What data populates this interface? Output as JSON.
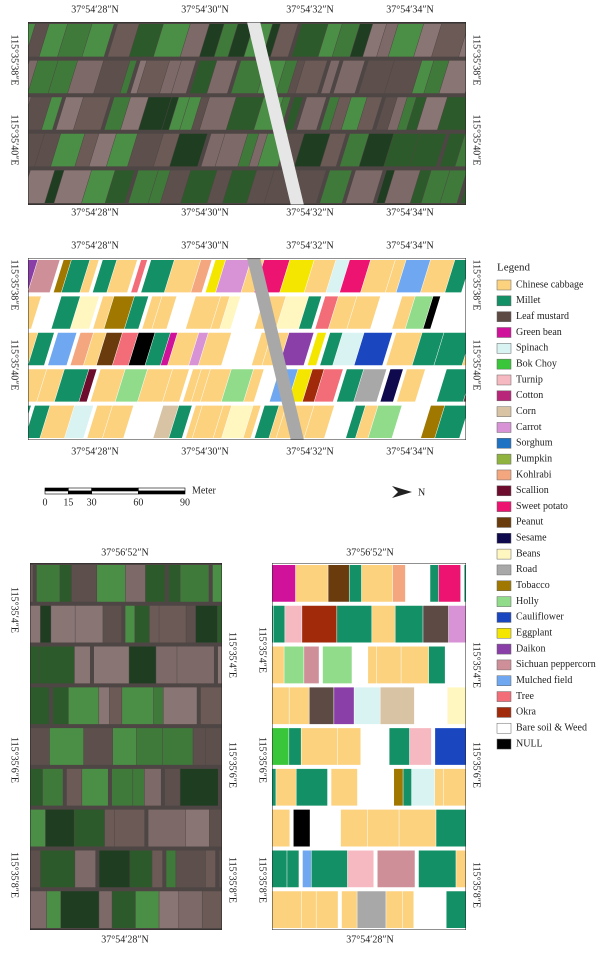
{
  "panels": [
    {
      "top_labels": [
        "37°54′28″N",
        "37°54′30″N",
        "37°54′32″N",
        "37°54′34″N"
      ],
      "bottom_labels": [
        "37°54′28″N",
        "37°54′30″N",
        "37°54′32″N",
        "37°54′34″N"
      ],
      "left_labels": [
        "115°35′38″E",
        "115°35′40″E"
      ],
      "right_labels": [
        "115°35′38″E",
        "115°35′40″E"
      ]
    },
    {
      "top_labels": [
        "37°54′28″N",
        "37°54′30″N",
        "37°54′32″N",
        "37°54′34″N"
      ],
      "bottom_labels": [
        "37°54′28″N",
        "37°54′30″N",
        "37°54′32″N",
        "37°54′34″N"
      ],
      "left_labels": [
        "115°35′38″E",
        "115°35′40″E"
      ],
      "right_labels": [
        "115°35′38″E",
        "115°35′40″E"
      ]
    },
    {
      "top_labels": [
        "37°56′52″N"
      ],
      "bottom_labels": [
        "37°54′28″N"
      ],
      "left_labels": [
        "115°35′4″E",
        "115°35′6″E",
        "115°35′8″E"
      ],
      "right_labels": [
        "115°35′4″E",
        "115°35′6″E",
        "115°35′8″E"
      ]
    },
    {
      "top_labels": [
        "37°56′52″N"
      ],
      "bottom_labels": [
        "37°54′28″N"
      ],
      "left_labels": [
        "115°35′4″E",
        "115°35′6″E",
        "115°35′8″E"
      ],
      "right_labels": [
        "115°35′4″E",
        "115°35′6″E",
        "115°35′8″E"
      ]
    }
  ],
  "scale_bar": {
    "ticks": [
      0,
      15,
      30,
      60,
      90
    ],
    "unit": "Meter"
  },
  "north_label": "N",
  "legend": {
    "title": "Legend",
    "items": [
      {
        "label": "Chinese cabbage",
        "color": "#fcd27f"
      },
      {
        "label": "Millet",
        "color": "#139065"
      },
      {
        "label": "Leaf mustard",
        "color": "#5e4a44"
      },
      {
        "label": "Green bean",
        "color": "#d0129b"
      },
      {
        "label": "Spinach",
        "color": "#d9f2f2"
      },
      {
        "label": "Bok Choy",
        "color": "#3ac63a"
      },
      {
        "label": "Turnip",
        "color": "#f7b9c1"
      },
      {
        "label": "Cotton",
        "color": "#b8267a"
      },
      {
        "label": "Corn",
        "color": "#d8c4a5"
      },
      {
        "label": "Carrot",
        "color": "#d892d6"
      },
      {
        "label": "Sorghum",
        "color": "#1e72c4"
      },
      {
        "label": "Pumpkin",
        "color": "#8fb33e"
      },
      {
        "label": "Kohlrabi",
        "color": "#f4a77f"
      },
      {
        "label": "Scallion",
        "color": "#6e0c2e"
      },
      {
        "label": "Sweet potato",
        "color": "#ec1470"
      },
      {
        "label": "Peanut",
        "color": "#6a3b0c"
      },
      {
        "label": "Sesame",
        "color": "#0f0a4e"
      },
      {
        "label": "Beans",
        "color": "#fff6c0"
      },
      {
        "label": "Road",
        "color": "#a8a8a8"
      },
      {
        "label": "Tobacco",
        "color": "#a07800"
      },
      {
        "label": "Holly",
        "color": "#90dc8a"
      },
      {
        "label": "Cauliflower",
        "color": "#1a47c0"
      },
      {
        "label": "Eggplant",
        "color": "#f5e600"
      },
      {
        "label": "Daikon",
        "color": "#8a3fa8"
      },
      {
        "label": "Sichuan peppercorn",
        "color": "#cf8f98"
      },
      {
        "label": "Mulched field",
        "color": "#6fa8f0"
      },
      {
        "label": "Tree",
        "color": "#f26d78"
      },
      {
        "label": "Okra",
        "color": "#a02a0a"
      },
      {
        "label": "Bare soil & Weed",
        "color": "#ffffff"
      },
      {
        "label": "NULL",
        "color": "#000000"
      }
    ]
  }
}
